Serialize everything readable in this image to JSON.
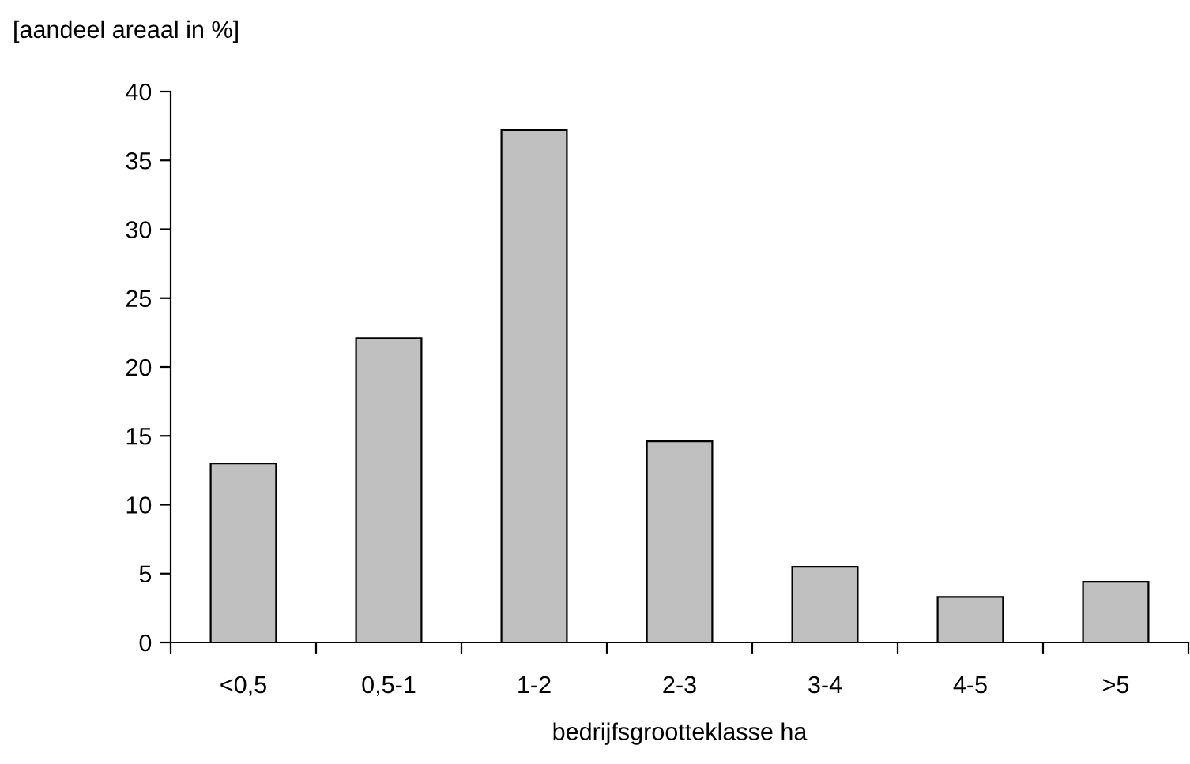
{
  "chart_data": {
    "type": "bar",
    "ylabel": "[aandeel areaal in %]",
    "xlabel": "bedrijfsgrootteklasse ha",
    "categories": [
      "<0,5",
      "0,5-1",
      "1-2",
      "2-3",
      "3-4",
      "4-5",
      ">5"
    ],
    "values": [
      13.0,
      22.1,
      37.2,
      14.6,
      5.5,
      3.3,
      4.4
    ],
    "color": "#c0c0c0",
    "ylim": [
      0,
      40
    ],
    "yticks": [
      0,
      5,
      10,
      15,
      20,
      25,
      30,
      35,
      40
    ],
    "grid": false,
    "legend": false
  }
}
